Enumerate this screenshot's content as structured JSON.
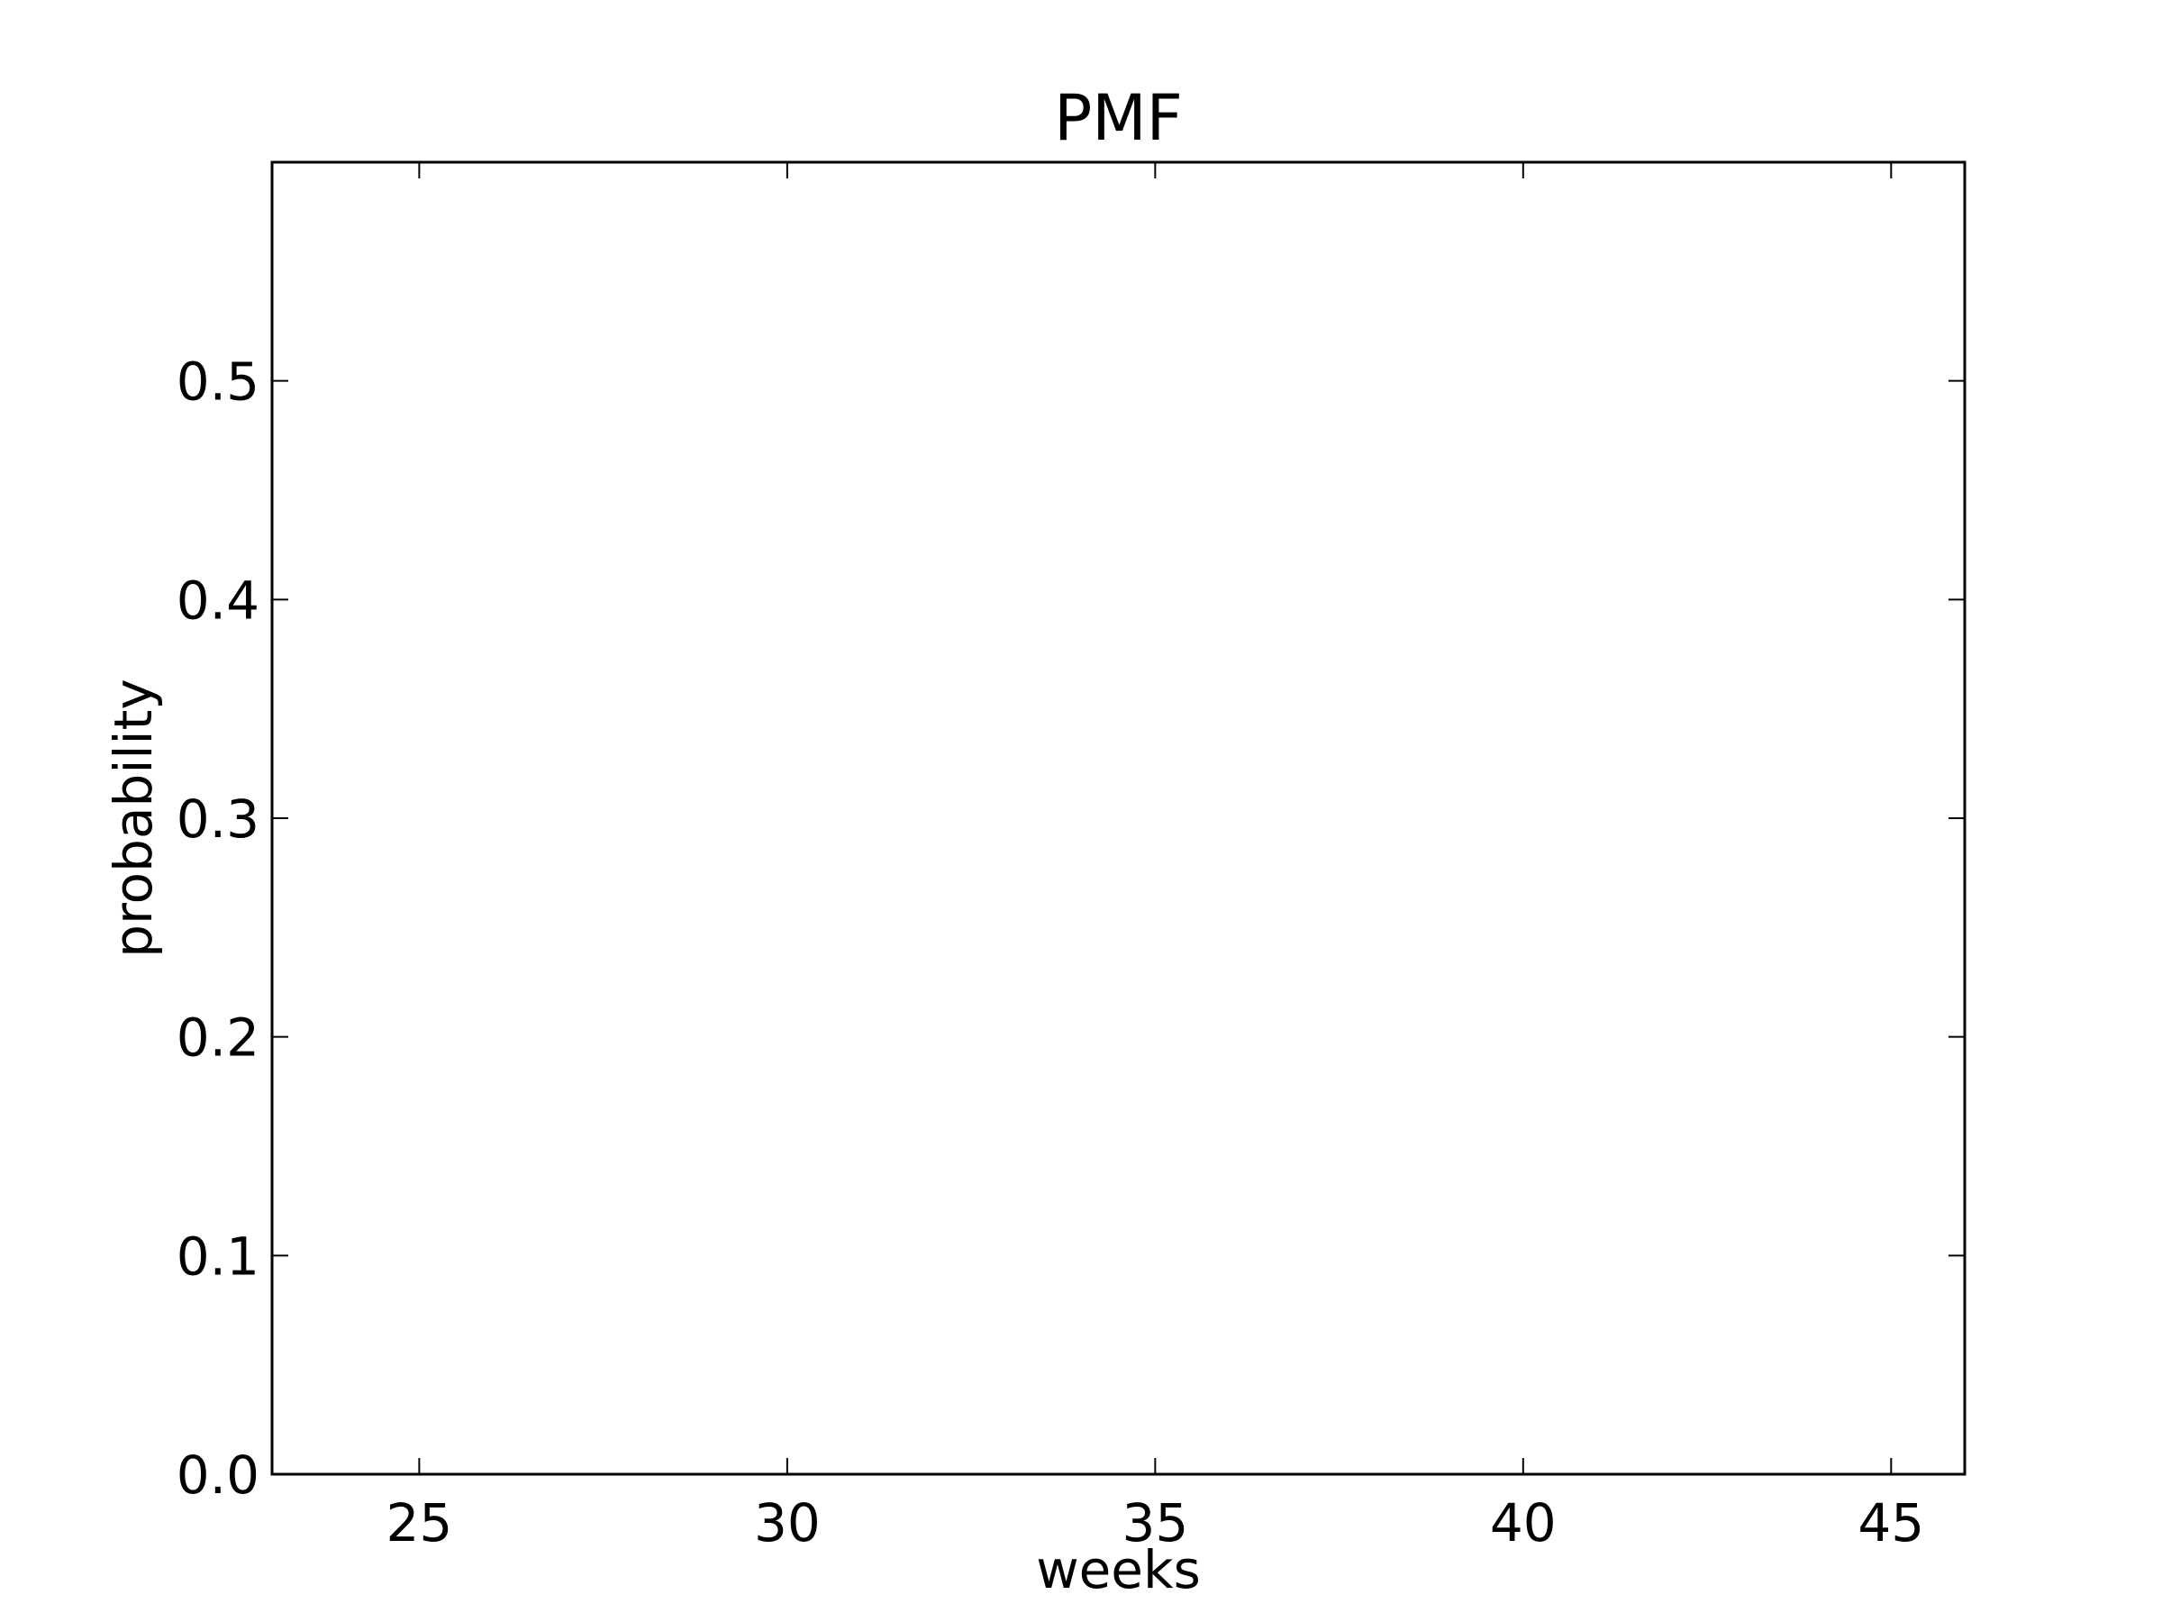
{
  "chart_data": {
    "type": "line",
    "title": "PMF",
    "xlabel": "weeks",
    "ylabel": "probability",
    "xlim": [
      23,
      46
    ],
    "ylim": [
      0.0,
      0.6
    ],
    "xticks": [
      25,
      30,
      35,
      40,
      45
    ],
    "xtick_labels": [
      "25",
      "30",
      "35",
      "40",
      "45"
    ],
    "yticks": [
      0.0,
      0.1,
      0.2,
      0.3,
      0.4,
      0.5
    ],
    "ytick_labels": [
      "0.0",
      "0.1",
      "0.2",
      "0.3",
      "0.4",
      "0.5"
    ],
    "grid": false,
    "series": []
  }
}
